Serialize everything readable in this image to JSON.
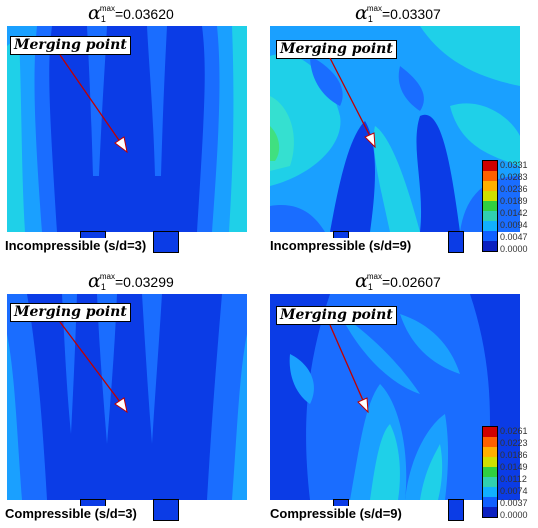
{
  "panels": [
    {
      "title_value": "=0.03620",
      "caption": "Incompressible (s/d=3)",
      "label": "Merging point"
    },
    {
      "title_value": "=0.03307",
      "caption": "Incompressible (s/d=9)",
      "label": "Merging point",
      "legend": [
        "0.0331",
        "0.0283",
        "0.0236",
        "0.0189",
        "0.0142",
        "0.0094",
        "0.0047",
        "0.0000"
      ]
    },
    {
      "title_value": "=0.03299",
      "caption": "Compressible (s/d=3)",
      "label": "Merging point"
    },
    {
      "title_value": "=0.02607",
      "caption": "Compressible (s/d=9)",
      "label": "Merging point",
      "legend": [
        "0.0261",
        "0.0223",
        "0.0186",
        "0.0149",
        "0.0112",
        "0.0074",
        "0.0037",
        "0.0000"
      ]
    }
  ],
  "symbol": {
    "alpha": "α",
    "subscript": "1",
    "superscript": "max"
  },
  "colors": {
    "deep_blue": "#0b3ce6",
    "mid_blue": "#1a6dff",
    "light_blue": "#1aa0ff",
    "cyan": "#1fd0e8",
    "aqua": "#35e0d0",
    "green": "#40e080",
    "arrow": "#c00000"
  },
  "legend_colors": [
    "#d00000",
    "#ff6000",
    "#ffb000",
    "#d0e000",
    "#30d040",
    "#30d0b0",
    "#10b0ff",
    "#1060ff",
    "#0b20c0"
  ]
}
